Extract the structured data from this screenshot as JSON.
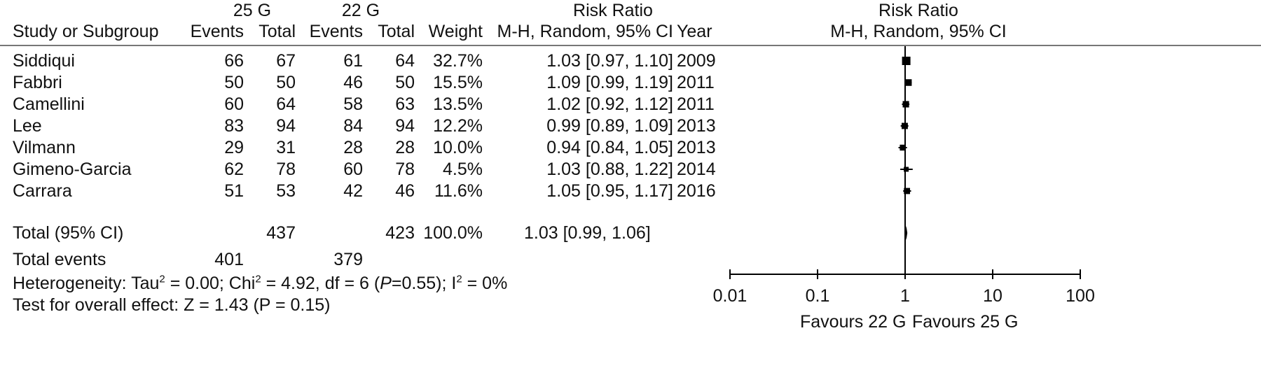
{
  "header": {
    "group1_name": "25 G",
    "group2_name": "22 G",
    "rr_title": "Risk Ratio",
    "col_study": "Study or Subgroup",
    "col_events": "Events",
    "col_total": "Total",
    "col_weight": "Weight",
    "col_rr_method": "M-H, Random, 95% CI",
    "col_year": "Year",
    "plot_title": "Risk Ratio",
    "plot_method": "M-H, Random, 95% CI"
  },
  "studies": [
    {
      "name": "Siddiqui",
      "e1": "66",
      "t1": "67",
      "e2": "61",
      "t2": "64",
      "weight": "32.7%",
      "ci": "1.03 [0.97, 1.10]",
      "year": "2009"
    },
    {
      "name": "Fabbri",
      "e1": "50",
      "t1": "50",
      "e2": "46",
      "t2": "50",
      "weight": "15.5%",
      "ci": "1.09 [0.99, 1.19]",
      "year": "2011"
    },
    {
      "name": "Camellini",
      "e1": "60",
      "t1": "64",
      "e2": "58",
      "t2": "63",
      "weight": "13.5%",
      "ci": "1.02 [0.92, 1.12]",
      "year": "2011"
    },
    {
      "name": "Lee",
      "e1": "83",
      "t1": "94",
      "e2": "84",
      "t2": "94",
      "weight": "12.2%",
      "ci": "0.99 [0.89, 1.09]",
      "year": "2013"
    },
    {
      "name": "Vilmann",
      "e1": "29",
      "t1": "31",
      "e2": "28",
      "t2": "28",
      "weight": "10.0%",
      "ci": "0.94 [0.84, 1.05]",
      "year": "2013"
    },
    {
      "name": "Gimeno-Garcia",
      "e1": "62",
      "t1": "78",
      "e2": "60",
      "t2": "78",
      "weight": "4.5%",
      "ci": "1.03 [0.88, 1.22]",
      "year": "2014"
    },
    {
      "name": "Carrara",
      "e1": "51",
      "t1": "53",
      "e2": "42",
      "t2": "46",
      "weight": "11.6%",
      "ci": "1.05 [0.95, 1.17]",
      "year": "2016"
    }
  ],
  "total": {
    "label": "Total (95% CI)",
    "t1": "437",
    "t2": "423",
    "weight": "100.0%",
    "ci": "1.03 [0.99, 1.06]"
  },
  "total_events": {
    "label": "Total events",
    "e1": "401",
    "e2": "379"
  },
  "heterogeneity": {
    "p1": "Heterogeneity: Tau",
    "sup1": "2",
    "p2": " = 0.00; Chi",
    "sup2": "2",
    "p3": " = 4.92, df = 6 (",
    "p_italic": "P",
    "p4": "=0.55); I",
    "sup3": "2",
    "p5": " = 0%"
  },
  "overall_effect": "Test for overall effect: Z = 1.43 (P = 0.15)",
  "favours_left": "Favours 22 G",
  "favours_right": "Favours 25 G",
  "chart_data": {
    "type": "forest",
    "title": "Risk Ratio",
    "subtitle": "M-H, Random, 95% CI",
    "x_scale": "log",
    "xlim": [
      0.01,
      100
    ],
    "x_ticks": [
      0.01,
      0.1,
      1,
      10,
      100
    ],
    "x_tick_labels": [
      "0.01",
      "0.1",
      "1",
      "10",
      "100"
    ],
    "null_line": 1,
    "studies": [
      {
        "name": "Siddiqui",
        "rr": 1.03,
        "lower": 0.97,
        "upper": 1.1,
        "weight": 32.7
      },
      {
        "name": "Fabbri",
        "rr": 1.09,
        "lower": 0.99,
        "upper": 1.19,
        "weight": 15.5
      },
      {
        "name": "Camellini",
        "rr": 1.02,
        "lower": 0.92,
        "upper": 1.12,
        "weight": 13.5
      },
      {
        "name": "Lee",
        "rr": 0.99,
        "lower": 0.89,
        "upper": 1.09,
        "weight": 12.2
      },
      {
        "name": "Vilmann",
        "rr": 0.94,
        "lower": 0.84,
        "upper": 1.05,
        "weight": 10.0
      },
      {
        "name": "Gimeno-Garcia",
        "rr": 1.03,
        "lower": 0.88,
        "upper": 1.22,
        "weight": 4.5
      },
      {
        "name": "Carrara",
        "rr": 1.05,
        "lower": 0.95,
        "upper": 1.17,
        "weight": 11.6
      }
    ],
    "pooled": {
      "rr": 1.03,
      "lower": 0.99,
      "upper": 1.06
    },
    "colors": {
      "marker": "#000000",
      "axis": "#000000",
      "rule": "#777777"
    }
  }
}
